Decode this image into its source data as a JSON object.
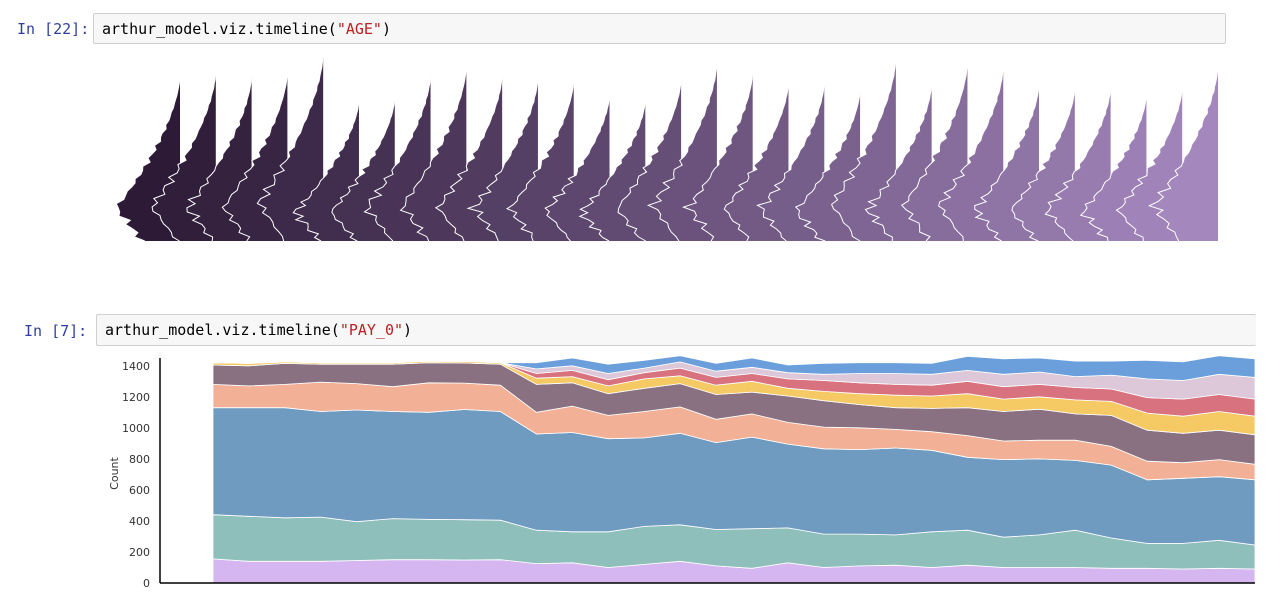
{
  "cells": [
    {
      "prompt": "In [22]:",
      "code_prefix": "arthur_model.viz.timeline(",
      "code_arg": "\"AGE\"",
      "code_suffix": ")"
    },
    {
      "prompt": "In [7]:",
      "code_prefix": "arthur_model.viz.timeline(",
      "code_arg": "\"PAY_0\"",
      "code_suffix": ")"
    }
  ],
  "ridge_chart": {
    "type": "area",
    "count": 30,
    "color_start": "#2c1a36",
    "color_end": "#a487bd",
    "line_color": "#ffffff"
  },
  "chart_data": {
    "type": "area",
    "ylabel": "Count",
    "yticks": [
      "0",
      "200",
      "400",
      "600",
      "800",
      "1000",
      "1200",
      "1400"
    ],
    "ylim": [
      0,
      1450
    ],
    "x": [
      0,
      1,
      2,
      3,
      4,
      5,
      6,
      7,
      8,
      9,
      10,
      11,
      12,
      13,
      14,
      15,
      16,
      17,
      18,
      19,
      20,
      21,
      22,
      23,
      24,
      25,
      26,
      27,
      28,
      29
    ],
    "series": [
      {
        "color": "#d6b6f0",
        "values": [
          155,
          140,
          140,
          140,
          145,
          150,
          150,
          148,
          150,
          125,
          130,
          100,
          120,
          140,
          110,
          95,
          130,
          100,
          110,
          115,
          100,
          115,
          100,
          100,
          100,
          95,
          95,
          90,
          95,
          90
        ]
      },
      {
        "color": "#8fbfbb",
        "values": [
          285,
          290,
          280,
          285,
          250,
          265,
          260,
          260,
          255,
          215,
          200,
          230,
          245,
          235,
          235,
          255,
          225,
          215,
          205,
          195,
          230,
          225,
          195,
          210,
          240,
          195,
          160,
          165,
          180,
          155
        ]
      },
      {
        "color": "#6f9bc1",
        "values": [
          690,
          700,
          710,
          680,
          720,
          690,
          690,
          710,
          700,
          620,
          640,
          600,
          570,
          590,
          560,
          590,
          540,
          550,
          545,
          560,
          525,
          470,
          500,
          490,
          450,
          470,
          410,
          420,
          410,
          420
        ]
      },
      {
        "color": "#f2b196",
        "values": [
          150,
          140,
          150,
          190,
          170,
          160,
          190,
          170,
          170,
          140,
          170,
          150,
          170,
          170,
          150,
          150,
          140,
          140,
          140,
          120,
          120,
          140,
          120,
          120,
          130,
          120,
          120,
          100,
          110,
          100
        ]
      },
      {
        "color": "#8a7181",
        "values": [
          125,
          130,
          135,
          115,
          125,
          145,
          130,
          130,
          135,
          180,
          150,
          140,
          150,
          150,
          160,
          140,
          170,
          170,
          150,
          140,
          150,
          180,
          190,
          200,
          170,
          200,
          200,
          190,
          190,
          190
        ]
      },
      {
        "color": "#f5c963",
        "values": [
          15,
          15,
          10,
          10,
          10,
          10,
          10,
          10,
          10,
          40,
          40,
          50,
          60,
          50,
          60,
          70,
          50,
          60,
          70,
          80,
          80,
          90,
          80,
          80,
          90,
          90,
          110,
          110,
          120,
          120
        ]
      },
      {
        "color": "#d9727f",
        "values": [
          0,
          0,
          0,
          0,
          0,
          0,
          0,
          0,
          0,
          30,
          40,
          40,
          40,
          50,
          50,
          50,
          60,
          70,
          70,
          70,
          70,
          80,
          80,
          80,
          80,
          80,
          100,
          110,
          110,
          110
        ]
      },
      {
        "color": "#dcc8d9",
        "values": [
          0,
          0,
          0,
          0,
          0,
          0,
          0,
          0,
          0,
          30,
          30,
          40,
          30,
          40,
          40,
          40,
          40,
          40,
          60,
          70,
          70,
          70,
          80,
          80,
          70,
          90,
          120,
          120,
          130,
          140
        ]
      },
      {
        "color": "#6a9fdc",
        "values": [
          0,
          0,
          0,
          0,
          0,
          0,
          0,
          0,
          0,
          40,
          50,
          60,
          50,
          40,
          50,
          60,
          50,
          70,
          70,
          70,
          70,
          90,
          100,
          90,
          100,
          90,
          120,
          120,
          120,
          120
        ]
      }
    ]
  }
}
